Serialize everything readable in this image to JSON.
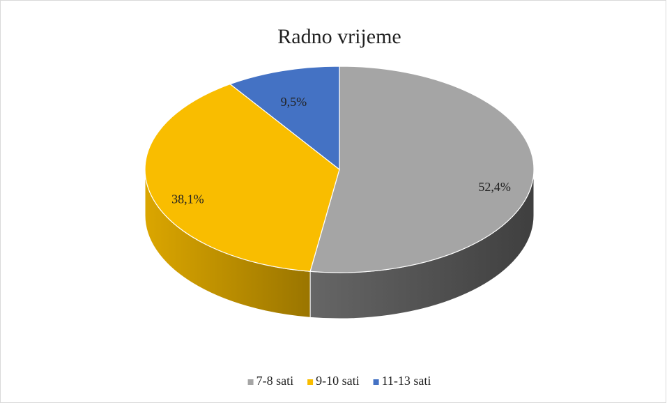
{
  "chart_data": {
    "type": "pie3d",
    "title": "Radno vrijeme",
    "categories": [
      "7-8 sati",
      "9-10 sati",
      "11-13 sati"
    ],
    "values": [
      52.4,
      38.1,
      9.5
    ],
    "value_labels": [
      "52,4%",
      "38,1%",
      "9,5%"
    ],
    "colors": [
      "#a5a5a5",
      "#f9bd00",
      "#4472c4"
    ],
    "legend": "bottom"
  }
}
